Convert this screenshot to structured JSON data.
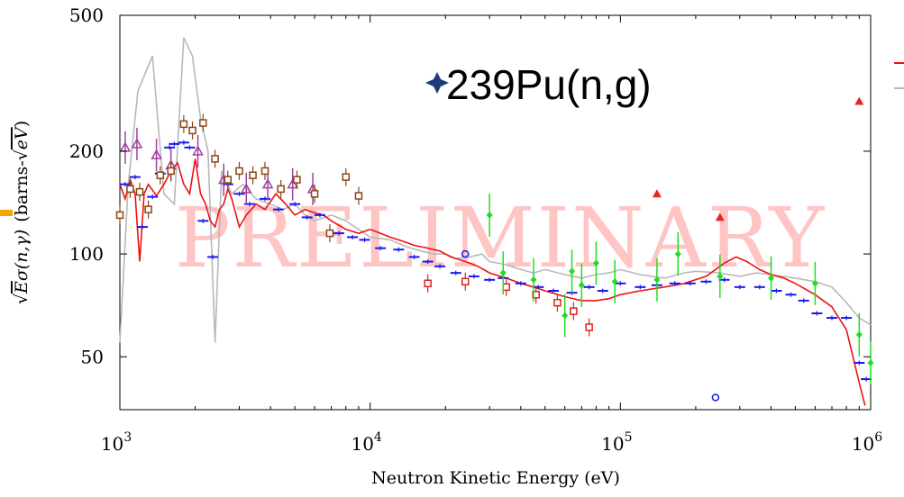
{
  "chart_data": {
    "type": "scatter",
    "title": "",
    "annotation": "239Pu(n,g)",
    "watermark": "PRELIMINARY",
    "xlabel": "Neutron Kinetic Energy (eV)",
    "ylabel_parts": {
      "sqrt": "√",
      "E": "E",
      "sigma": "σ(n,γ)",
      "units_prefix": "(barns-",
      "units_sqrt": "√",
      "units_eV": "eV",
      "units_suffix": ")"
    },
    "x_scale": "log",
    "y_scale": "log",
    "xlim": [
      1000,
      1000000
    ],
    "ylim": [
      35,
      500
    ],
    "x_ticks": [
      {
        "value": 1000,
        "base": "10",
        "exp": "3"
      },
      {
        "value": 10000,
        "base": "10",
        "exp": "4"
      },
      {
        "value": 100000,
        "base": "10",
        "exp": "5"
      },
      {
        "value": 1000000,
        "base": "10",
        "exp": "6"
      }
    ],
    "y_ticks": [
      {
        "value": 50,
        "label": "50"
      },
      {
        "value": 100,
        "label": "100"
      },
      {
        "value": 200,
        "label": "200"
      },
      {
        "value": 500,
        "label": "500"
      }
    ],
    "legend_position": "top-right",
    "series": [
      {
        "kind": "line",
        "color": "#b8b8b8",
        "points": [
          [
            1000,
            55
          ],
          [
            1080,
            160
          ],
          [
            1180,
            300
          ],
          [
            1350,
            380
          ],
          [
            1500,
            150
          ],
          [
            1650,
            140
          ],
          [
            1800,
            430
          ],
          [
            1950,
            380
          ],
          [
            2100,
            250
          ],
          [
            2250,
            200
          ],
          [
            2400,
            55
          ],
          [
            2550,
            175
          ],
          [
            2800,
            150
          ],
          [
            3100,
            160
          ],
          [
            3500,
            145
          ],
          [
            4000,
            140
          ],
          [
            4500,
            135
          ],
          [
            5000,
            140
          ],
          [
            5500,
            130
          ],
          [
            6000,
            125
          ],
          [
            7000,
            130
          ],
          [
            8000,
            125
          ],
          [
            9000,
            118
          ],
          [
            10000,
            112
          ],
          [
            12000,
            110
          ],
          [
            14000,
            105
          ],
          [
            16000,
            102
          ],
          [
            18000,
            100
          ],
          [
            20000,
            100
          ],
          [
            22000,
            97
          ],
          [
            25000,
            98
          ],
          [
            28000,
            100
          ],
          [
            30000,
            95
          ],
          [
            35000,
            93
          ],
          [
            40000,
            90
          ],
          [
            45000,
            88
          ],
          [
            50000,
            90
          ],
          [
            60000,
            87
          ],
          [
            70000,
            85
          ],
          [
            80000,
            87
          ],
          [
            90000,
            88
          ],
          [
            100000,
            90
          ],
          [
            120000,
            87
          ],
          [
            150000,
            85
          ],
          [
            180000,
            88
          ],
          [
            200000,
            89
          ],
          [
            250000,
            88
          ],
          [
            300000,
            86
          ],
          [
            350000,
            88
          ],
          [
            400000,
            87
          ],
          [
            500000,
            85
          ],
          [
            600000,
            83
          ],
          [
            700000,
            80
          ],
          [
            800000,
            72
          ],
          [
            900000,
            65
          ],
          [
            1000000,
            62
          ]
        ]
      },
      {
        "kind": "line",
        "color": "#ee1111",
        "points": [
          [
            1000,
            160
          ],
          [
            1050,
            145
          ],
          [
            1100,
            165
          ],
          [
            1150,
            150
          ],
          [
            1200,
            95
          ],
          [
            1250,
            150
          ],
          [
            1300,
            160
          ],
          [
            1400,
            148
          ],
          [
            1500,
            160
          ],
          [
            1600,
            175
          ],
          [
            1700,
            185
          ],
          [
            1800,
            160
          ],
          [
            1900,
            150
          ],
          [
            2000,
            190
          ],
          [
            2100,
            150
          ],
          [
            2200,
            140
          ],
          [
            2300,
            125
          ],
          [
            2400,
            120
          ],
          [
            2500,
            135
          ],
          [
            2600,
            140
          ],
          [
            2700,
            155
          ],
          [
            2800,
            145
          ],
          [
            3000,
            120
          ],
          [
            3200,
            130
          ],
          [
            3500,
            140
          ],
          [
            3800,
            135
          ],
          [
            4200,
            150
          ],
          [
            4600,
            140
          ],
          [
            5000,
            130
          ],
          [
            5500,
            135
          ],
          [
            6000,
            132
          ],
          [
            6500,
            130
          ],
          [
            7000,
            125
          ],
          [
            8000,
            118
          ],
          [
            9000,
            115
          ],
          [
            10000,
            118
          ],
          [
            11000,
            115
          ],
          [
            12000,
            112
          ],
          [
            13000,
            110
          ],
          [
            14000,
            108
          ],
          [
            15000,
            106
          ],
          [
            17000,
            104
          ],
          [
            19000,
            102
          ],
          [
            21000,
            98
          ],
          [
            24000,
            95
          ],
          [
            27000,
            92
          ],
          [
            30000,
            88
          ],
          [
            35000,
            85
          ],
          [
            40000,
            82
          ],
          [
            45000,
            80
          ],
          [
            50000,
            78
          ],
          [
            60000,
            75
          ],
          [
            70000,
            73
          ],
          [
            80000,
            73
          ],
          [
            90000,
            74
          ],
          [
            100000,
            76
          ],
          [
            120000,
            78
          ],
          [
            150000,
            80
          ],
          [
            180000,
            82
          ],
          [
            220000,
            86
          ],
          [
            260000,
            94
          ],
          [
            290000,
            98
          ],
          [
            320000,
            95
          ],
          [
            360000,
            90
          ],
          [
            400000,
            87
          ],
          [
            450000,
            85
          ],
          [
            500000,
            82
          ],
          [
            600000,
            76
          ],
          [
            700000,
            70
          ],
          [
            800000,
            60
          ],
          [
            850000,
            50
          ],
          [
            900000,
            42
          ],
          [
            950000,
            36
          ]
        ]
      },
      {
        "kind": "points",
        "marker": "hbar",
        "color": "#1a1aee",
        "points": [
          [
            1050,
            160
          ],
          [
            1150,
            168
          ],
          [
            1230,
            120
          ],
          [
            1350,
            147
          ],
          [
            1450,
            172
          ],
          [
            1580,
            205
          ],
          [
            1650,
            210
          ],
          [
            1800,
            212
          ],
          [
            1900,
            205
          ],
          [
            2150,
            125
          ],
          [
            2350,
            98
          ],
          [
            2700,
            160
          ],
          [
            3000,
            150
          ],
          [
            3300,
            140
          ],
          [
            3800,
            145
          ],
          [
            4300,
            135
          ],
          [
            5000,
            140
          ],
          [
            5600,
            128
          ],
          [
            6300,
            130
          ],
          [
            7500,
            115
          ],
          [
            8500,
            112
          ],
          [
            9500,
            110
          ],
          [
            11000,
            104
          ],
          [
            13000,
            103
          ],
          [
            15000,
            98
          ],
          [
            17000,
            95
          ],
          [
            19000,
            92
          ],
          [
            22000,
            88
          ],
          [
            26000,
            86
          ],
          [
            30000,
            84
          ],
          [
            34000,
            85
          ],
          [
            40000,
            82
          ],
          [
            47000,
            80
          ],
          [
            54000,
            78
          ],
          [
            64000,
            77
          ],
          [
            75000,
            80
          ],
          [
            85000,
            78
          ],
          [
            100000,
            82
          ],
          [
            120000,
            80
          ],
          [
            140000,
            81
          ],
          [
            165000,
            82
          ],
          [
            190000,
            82
          ],
          [
            220000,
            83
          ],
          [
            260000,
            84
          ],
          [
            300000,
            80
          ],
          [
            360000,
            80
          ],
          [
            420000,
            78
          ],
          [
            480000,
            76
          ],
          [
            540000,
            73
          ],
          [
            610000,
            67
          ],
          [
            700000,
            65
          ],
          [
            800000,
            65
          ],
          [
            900000,
            48
          ],
          [
            960000,
            43
          ]
        ]
      },
      {
        "kind": "points",
        "marker": "triangle-open",
        "color": "#a040a0",
        "points": [
          [
            1050,
            205
          ],
          [
            1170,
            210
          ],
          [
            1400,
            195
          ],
          [
            1600,
            182
          ],
          [
            2050,
            200
          ],
          [
            2600,
            165
          ],
          [
            3200,
            155
          ],
          [
            3900,
            160
          ],
          [
            4900,
            160
          ],
          [
            5900,
            155
          ]
        ]
      },
      {
        "kind": "points",
        "marker": "square-open",
        "color": "#8b4513",
        "points": [
          [
            1000,
            130
          ],
          [
            1100,
            155
          ],
          [
            1200,
            152
          ],
          [
            1300,
            135
          ],
          [
            1450,
            170
          ],
          [
            1600,
            175
          ],
          [
            1800,
            240
          ],
          [
            1950,
            230
          ],
          [
            2150,
            242
          ],
          [
            2400,
            190
          ],
          [
            2700,
            165
          ],
          [
            3000,
            175
          ],
          [
            3400,
            170
          ],
          [
            3800,
            175
          ],
          [
            4400,
            155
          ],
          [
            5100,
            165
          ],
          [
            6000,
            150
          ],
          [
            6900,
            115
          ],
          [
            8000,
            168
          ],
          [
            9000,
            148
          ]
        ]
      },
      {
        "kind": "points",
        "marker": "square-open",
        "color": "#dd2222",
        "points": [
          [
            17000,
            82
          ],
          [
            24000,
            83
          ],
          [
            35000,
            80
          ],
          [
            46000,
            76
          ],
          [
            56000,
            72
          ],
          [
            65000,
            68
          ],
          [
            75000,
            61
          ]
        ]
      },
      {
        "kind": "points",
        "marker": "diamond",
        "color": "#22dd22",
        "points": [
          [
            30000,
            130
          ],
          [
            34000,
            88
          ],
          [
            45000,
            84
          ],
          [
            60000,
            66
          ],
          [
            64000,
            89
          ],
          [
            70000,
            81
          ],
          [
            80000,
            94
          ],
          [
            95000,
            83
          ],
          [
            140000,
            84
          ],
          [
            170000,
            100
          ],
          [
            250000,
            86
          ],
          [
            400000,
            85
          ],
          [
            600000,
            82
          ],
          [
            900000,
            58
          ],
          [
            1000000,
            48
          ]
        ]
      },
      {
        "kind": "points",
        "marker": "triangle-filled",
        "color": "#ee2222",
        "points": [
          [
            140000,
            150
          ],
          [
            250000,
            128
          ],
          [
            900000,
            280
          ]
        ]
      },
      {
        "kind": "points",
        "marker": "circle-open",
        "color": "#1a1aee",
        "points": [
          [
            24000,
            100
          ],
          [
            240000,
            38
          ]
        ]
      }
    ]
  }
}
